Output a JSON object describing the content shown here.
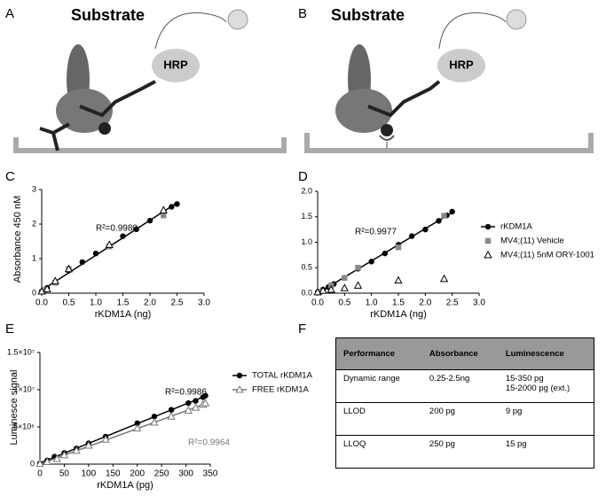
{
  "panel_labels": [
    "A",
    "B",
    "C",
    "D",
    "E",
    "F"
  ],
  "diagrams": [
    {
      "substrate": "Substrate",
      "enzyme": "HRP"
    },
    {
      "substrate": "Substrate",
      "enzyme": "HRP"
    }
  ],
  "chart_data": [
    {
      "type": "scatter",
      "xlabel": "rKDM1A (ng)",
      "ylabel": "Absorbance 450 nM",
      "legend": false,
      "xlim": [
        0,
        3
      ],
      "xticks": [
        {
          "value": 0,
          "label": "0.0"
        },
        0.5,
        {
          "value": 1,
          "label": "1.0"
        },
        1.5,
        {
          "value": 2,
          "label": "2.0"
        },
        2.5,
        {
          "value": 3,
          "label": "3.0"
        }
      ],
      "ylim": [
        0,
        3
      ],
      "yticks": [
        0,
        1,
        2,
        3
      ],
      "annotations": [
        {
          "text": "R²=0.9980",
          "color": "#000"
        }
      ],
      "series": [
        {
          "name": "rKDM1A",
          "color": "#000",
          "marker": "circle",
          "fit": true,
          "x": [
            0,
            0.05,
            0.1,
            0.25,
            0.5,
            0.75,
            1.0,
            1.25,
            1.5,
            1.75,
            2.0,
            2.25,
            2.4,
            2.5
          ],
          "values": [
            0.05,
            0.1,
            0.15,
            0.3,
            0.65,
            0.9,
            1.15,
            1.35,
            1.65,
            1.85,
            2.1,
            2.35,
            2.5,
            2.58
          ]
        },
        {
          "name": "MV4;(11) Vehicle",
          "color": "#888",
          "marker": "square",
          "fit": false,
          "x": [
            0.05,
            0.25,
            0.5,
            1.25,
            2.25
          ],
          "values": [
            0.1,
            0.3,
            0.7,
            1.35,
            2.25
          ]
        },
        {
          "name": "MV4;(11) 5nM ORY-1001",
          "color": "#000",
          "marker": "triangle",
          "fit": false,
          "x": [
            0,
            0.1,
            0.25,
            0.5,
            1.25,
            2.25
          ],
          "values": [
            0.05,
            0.12,
            0.35,
            0.7,
            1.4,
            2.4
          ]
        }
      ]
    },
    {
      "type": "scatter",
      "xlabel": "rKDM1A (ng)",
      "ylabel": null,
      "legend": true,
      "xlim": [
        0,
        3
      ],
      "xticks": [
        {
          "value": 0,
          "label": "0.0"
        },
        0.5,
        {
          "value": 1,
          "label": "1.0"
        },
        1.5,
        {
          "value": 2,
          "label": "2.0"
        },
        2.5,
        {
          "value": 3,
          "label": "3.0"
        }
      ],
      "ylim": [
        0,
        2
      ],
      "yticks": [
        {
          "value": 0,
          "label": "0.0"
        },
        0.5,
        {
          "value": 1,
          "label": "1.0"
        },
        1.5,
        {
          "value": 2,
          "label": "2.0"
        }
      ],
      "annotations": [
        {
          "text": "R²=0.9977",
          "color": "#000"
        }
      ],
      "series": [
        {
          "name": "rKDM1A",
          "color": "#000",
          "marker": "circle",
          "fit": true,
          "x": [
            0,
            0.1,
            0.2,
            0.3,
            0.5,
            0.75,
            1.0,
            1.25,
            1.5,
            1.75,
            2.0,
            2.25,
            2.4,
            2.5
          ],
          "values": [
            0.02,
            0.07,
            0.12,
            0.18,
            0.3,
            0.48,
            0.62,
            0.78,
            0.95,
            1.12,
            1.25,
            1.42,
            1.53,
            1.6
          ]
        },
        {
          "name": "MV4;(11) Vehicle",
          "color": "#888",
          "marker": "square",
          "fit": false,
          "x": [
            0.05,
            0.25,
            0.5,
            0.75,
            1.5,
            2.35
          ],
          "values": [
            0.03,
            0.15,
            0.3,
            0.5,
            0.9,
            1.52
          ]
        },
        {
          "name": "MV4;(11) 5nM ORY-1001",
          "color": "#000",
          "marker": "triangle",
          "fit": false,
          "x": [
            0,
            0.1,
            0.25,
            0.5,
            0.75,
            1.5,
            2.35
          ],
          "values": [
            0.02,
            0.05,
            0.07,
            0.1,
            0.15,
            0.25,
            0.28
          ]
        }
      ]
    },
    {
      "type": "scatter",
      "xlabel": "rKDM1A (pg)",
      "ylabel": "Luminesce signal",
      "legend": true,
      "xlim": [
        0,
        350
      ],
      "xticks": [
        0,
        50,
        100,
        150,
        200,
        250,
        300,
        350
      ],
      "ylim": [
        0,
        15000000
      ],
      "yticks": [
        0,
        {
          "value": 5000000,
          "label": "5×10⁶"
        },
        {
          "value": 10000000,
          "label": "1×10⁷"
        },
        {
          "value": 15000000,
          "label": "1.5×10⁷"
        }
      ],
      "annotations": [
        {
          "text": "R²=0.9986",
          "color": "#000"
        },
        {
          "text": "R²=0.9964",
          "color": "#777"
        }
      ],
      "series": [
        {
          "name": "TOTAL rKDM1A",
          "color": "#000",
          "marker": "circle",
          "fit": true,
          "x": [
            0,
            15,
            30,
            50,
            75,
            100,
            135,
            200,
            235,
            270,
            305,
            320,
            335,
            340
          ],
          "values": [
            100000,
            500000,
            1000000,
            1500000,
            2100000,
            2800000,
            3700000,
            5500000,
            6400000,
            7300000,
            8200000,
            8500000,
            9000000,
            9200000
          ]
        },
        {
          "name": "FREE rKDM1A",
          "color": "#777",
          "marker": "triangle",
          "fit": true,
          "x": [
            0,
            15,
            35,
            50,
            75,
            100,
            135,
            200,
            235,
            270,
            305,
            320,
            335,
            340
          ],
          "values": [
            50000,
            300000,
            700000,
            1200000,
            1800000,
            2500000,
            3300000,
            4800000,
            5600000,
            6400000,
            7200000,
            7600000,
            8000000,
            8200000
          ]
        }
      ]
    }
  ],
  "table": {
    "header": [
      "Performance",
      "Absorbance",
      "Luminescence"
    ],
    "rows": [
      [
        "Dynamic range",
        "0.25-2.5ng",
        [
          "15-350 pg",
          "15-2000 pg (ext.)"
        ]
      ],
      [
        "LLOD",
        "200 pg",
        [
          "9 pg"
        ]
      ],
      [
        "LLOQ",
        "250 pg",
        [
          "15 pg"
        ]
      ]
    ]
  }
}
